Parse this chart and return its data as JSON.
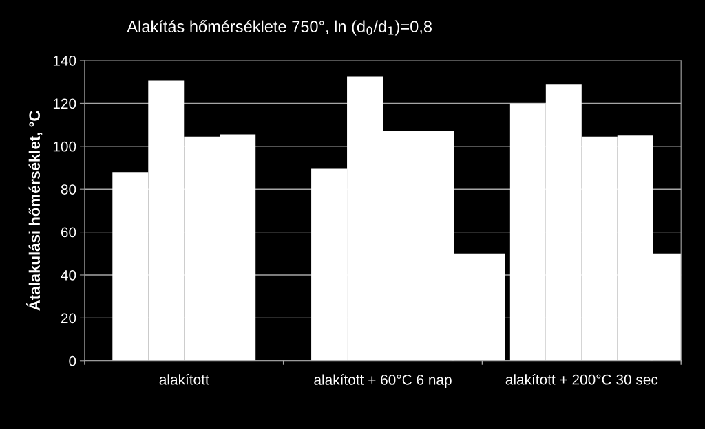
{
  "chart_data": {
    "type": "bar",
    "title": "Alakítás hőmérséklete 750°, ln (d$_{0}$/d$_{1}$)=0,8",
    "ylabel": "Átalakulási hőmérséklet, °C",
    "categories": [
      "alakított",
      "alakított + 60°C 6 nap",
      "alakított + 200°C 30 sec"
    ],
    "series": [
      {
        "color": "#ffffff",
        "values": [
          88,
          89.5,
          120
        ]
      },
      {
        "color": "#ffffff",
        "values": [
          130.5,
          132.5,
          129
        ]
      },
      {
        "color": "#ffffff",
        "values": [
          104.5,
          107,
          104.5
        ]
      },
      {
        "color": "#ffffff",
        "values": [
          105.5,
          107,
          105
        ]
      },
      {
        "color": "#ffffff",
        "values": [
          0,
          50,
          50
        ]
      }
    ],
    "ylim": [
      0,
      140
    ],
    "yticks": [
      0,
      20,
      40,
      60,
      80,
      100,
      120,
      140
    ],
    "grid": "y",
    "legend": false
  }
}
